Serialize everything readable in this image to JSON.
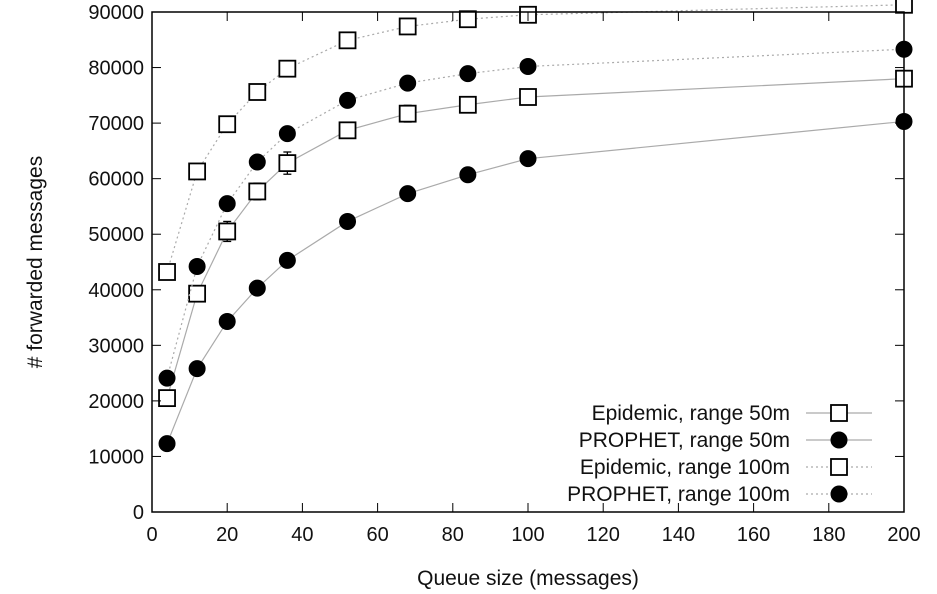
{
  "colors": {
    "axis": "#000000",
    "marker": "#000000",
    "grid_line": "#aaaaaa"
  },
  "chart_data": {
    "type": "line",
    "title": "",
    "xlabel": "Queue size (messages)",
    "ylabel": "# forwarded messages",
    "xlim": [
      0,
      200
    ],
    "ylim": [
      0,
      90000
    ],
    "xticks": [
      0,
      20,
      40,
      60,
      80,
      100,
      120,
      140,
      160,
      180,
      200
    ],
    "yticks": [
      0,
      10000,
      20000,
      30000,
      40000,
      50000,
      60000,
      70000,
      80000,
      90000
    ],
    "grid": false,
    "legend_position": "bottom-right",
    "series": [
      {
        "name": "Epidemic, range 50m",
        "marker": "open-square",
        "line_style": "solid",
        "x": [
          4,
          12,
          20,
          28,
          36,
          52,
          68,
          84,
          100,
          200
        ],
        "y": [
          20500,
          39300,
          50500,
          57700,
          62800,
          68700,
          71700,
          73300,
          74700,
          78000
        ],
        "error": [
          1200,
          1200,
          1800,
          1500,
          2000,
          1200,
          1500,
          1200,
          1000,
          1000
        ]
      },
      {
        "name": "PROPHET, range 50m",
        "marker": "filled-circle",
        "line_style": "solid",
        "x": [
          4,
          12,
          20,
          28,
          36,
          52,
          68,
          84,
          100,
          200
        ],
        "y": [
          12300,
          25800,
          34300,
          40300,
          45300,
          52300,
          57300,
          60700,
          63600,
          70300
        ]
      },
      {
        "name": "Epidemic, range 100m",
        "marker": "open-square",
        "line_style": "dotted",
        "x": [
          4,
          12,
          20,
          28,
          36,
          52,
          68,
          84,
          100,
          200
        ],
        "y": [
          43200,
          61300,
          69800,
          75600,
          79800,
          84900,
          87400,
          88700,
          89500,
          91300
        ],
        "error": [
          600,
          800,
          800,
          800,
          700,
          600,
          700,
          600,
          600,
          500
        ]
      },
      {
        "name": "PROPHET, range 100m",
        "marker": "filled-circle",
        "line_style": "dotted",
        "x": [
          4,
          12,
          20,
          28,
          36,
          52,
          68,
          84,
          100,
          200
        ],
        "y": [
          24100,
          44200,
          55500,
          63000,
          68100,
          74100,
          77200,
          78900,
          80200,
          83300
        ]
      }
    ]
  }
}
